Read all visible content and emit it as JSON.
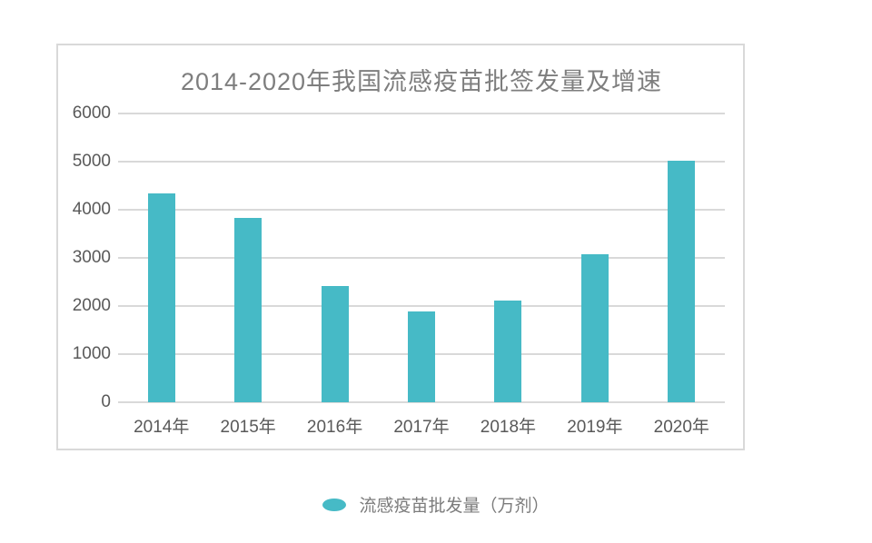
{
  "chart": {
    "colors": {
      "bar": "#46bac6",
      "grid": "#d9d9d9",
      "panel_border": "#d9d9d9",
      "title_text": "#7e7e7e",
      "axis_text": "#595959",
      "legend_text": "#7b7b7b",
      "background": "#ffffff"
    }
  },
  "chart_data": {
    "type": "bar",
    "title": "2014-2020年我国流感疫苗批签发量及增速",
    "categories": [
      "2014年",
      "2015年",
      "2016年",
      "2017年",
      "2018年",
      "2019年",
      "2020年"
    ],
    "series": [
      {
        "name": "流感疫苗批发量（万剂）",
        "values": [
          4340,
          3830,
          2410,
          1890,
          2110,
          3070,
          5010
        ]
      }
    ],
    "xlabel": "",
    "ylabel": "",
    "ylim": [
      0,
      6000
    ],
    "ytick_step": 1000,
    "grid": true,
    "legend_position": "bottom"
  }
}
